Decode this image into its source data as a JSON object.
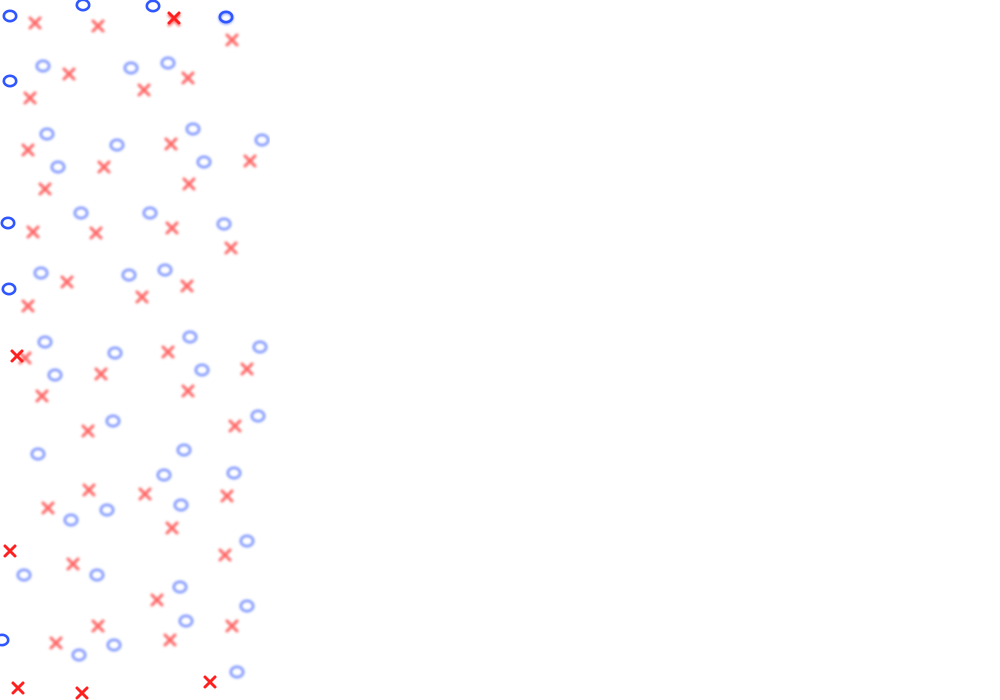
{
  "game": {
    "pieces": {
      "o_symbol": "O",
      "x_symbol": "X"
    },
    "colors": {
      "o": "#2f56ff",
      "x": "#ff1f1f",
      "o_soft": "#6b86ff",
      "x_soft": "#ff4a4a",
      "background": "#ffffff"
    }
  }
}
